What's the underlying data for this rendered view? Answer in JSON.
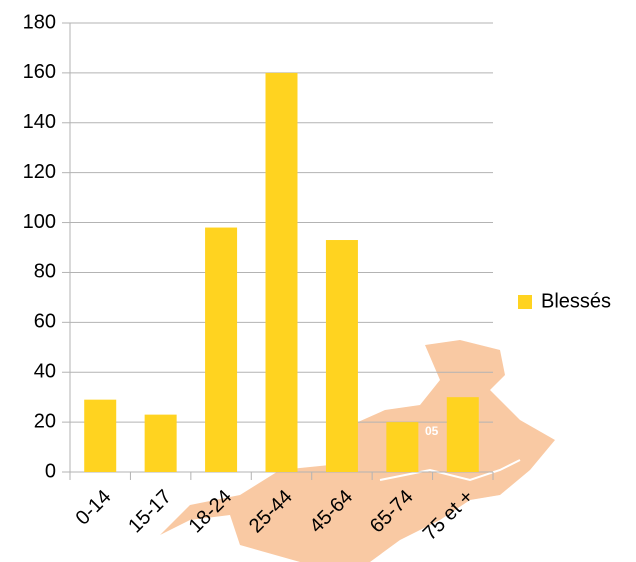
{
  "chart_data": {
    "type": "bar",
    "categories": [
      "0-14",
      "15-17",
      "18-24",
      "25-44",
      "45-64",
      "65-74",
      "75 et +"
    ],
    "series": [
      {
        "name": "Blessés",
        "color": "#ffd320",
        "values": [
          29,
          23,
          98,
          160,
          93,
          20,
          30
        ]
      }
    ],
    "ylim": [
      0,
      180
    ],
    "yticks": [
      0,
      20,
      40,
      60,
      80,
      100,
      120,
      140,
      160,
      180
    ],
    "grid": true,
    "legend": "right",
    "map_label": "05"
  }
}
